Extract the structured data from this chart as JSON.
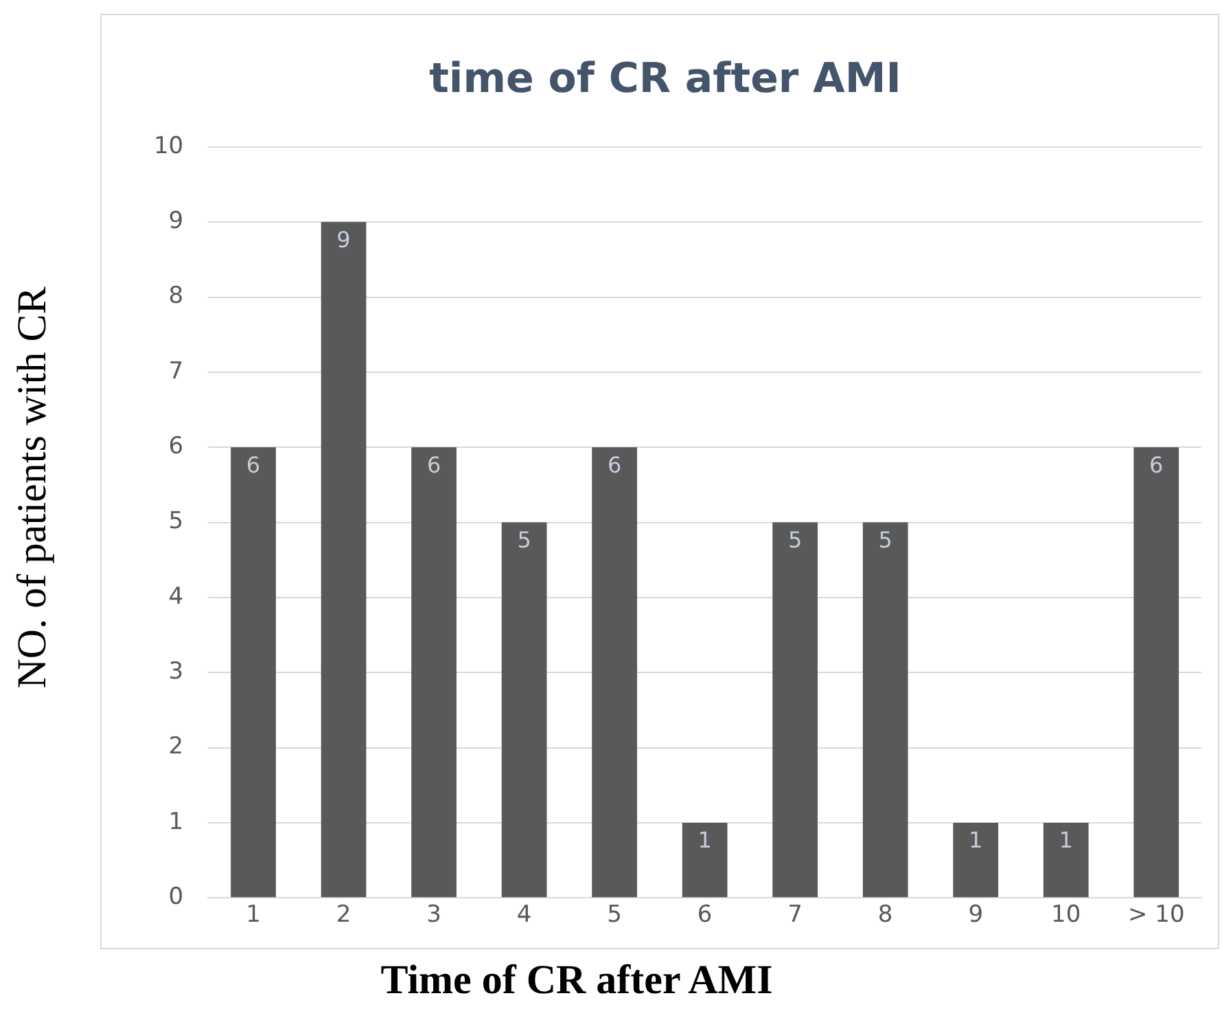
{
  "chart_data": {
    "type": "bar",
    "title": "time of CR after AMI",
    "xlabel": "Time of CR after AMI",
    "ylabel": "NO. of patients with CR",
    "categories": [
      "1",
      "2",
      "3",
      "4",
      "5",
      "6",
      "7",
      "8",
      "9",
      "10",
      "> 10"
    ],
    "values": [
      6,
      9,
      6,
      5,
      6,
      1,
      5,
      5,
      1,
      1,
      6
    ],
    "color": "#595959",
    "ylim": [
      0,
      10
    ],
    "yticks": [
      0,
      1,
      2,
      3,
      4,
      5,
      6,
      7,
      8,
      9,
      10
    ],
    "grid": "y",
    "legend": false,
    "data_labels": true
  }
}
